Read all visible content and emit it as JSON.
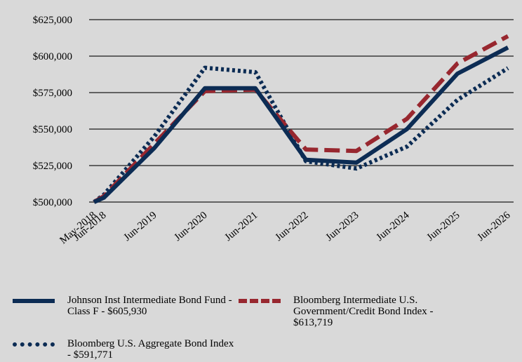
{
  "chart_data": {
    "type": "line",
    "categories": [
      "May-2018",
      "Jun-2018",
      "Jun-2019",
      "Jun-2020",
      "Jun-2021",
      "Jun-2022",
      "Jun-2023",
      "Jun-2024",
      "Jun-2025",
      "Jun-2026"
    ],
    "x_tick_labels": [
      "May-2018",
      "Jun-2018",
      "Jun-2019",
      "Jun-2020",
      "Jun-2021",
      "Jun-2022",
      "Jun-2023",
      "Jun-2024",
      "Jun-2025",
      "Jun-2026"
    ],
    "y_tick_labels": [
      "$500,000",
      "$525,000",
      "$550,000",
      "$575,000",
      "$600,000",
      "$625,000"
    ],
    "ylim": [
      500000,
      625000
    ],
    "grid": "horizontal",
    "legend_position": "bottom",
    "series": [
      {
        "name": "Johnson Inst Intermediate Bond Fund - Class F - $605,930",
        "color": "#0c2c54",
        "style": "solid",
        "values": [
          500000,
          503000,
          537000,
          578000,
          578000,
          529000,
          527000,
          550000,
          588000,
          605930
        ]
      },
      {
        "name": "Bloomberg Intermediate U.S. Government/Credit Bond Index - $613,719",
        "color": "#98272f",
        "style": "dashed",
        "values": [
          500000,
          504000,
          540000,
          576000,
          577000,
          536000,
          535000,
          557000,
          595000,
          613719
        ]
      },
      {
        "name": "Bloomberg U.S. Aggregate Bond Index - $591,771",
        "color": "#0c2c54",
        "style": "dotted",
        "values": [
          500000,
          505000,
          545000,
          592000,
          589000,
          528000,
          523000,
          538000,
          570000,
          591771
        ]
      }
    ]
  }
}
